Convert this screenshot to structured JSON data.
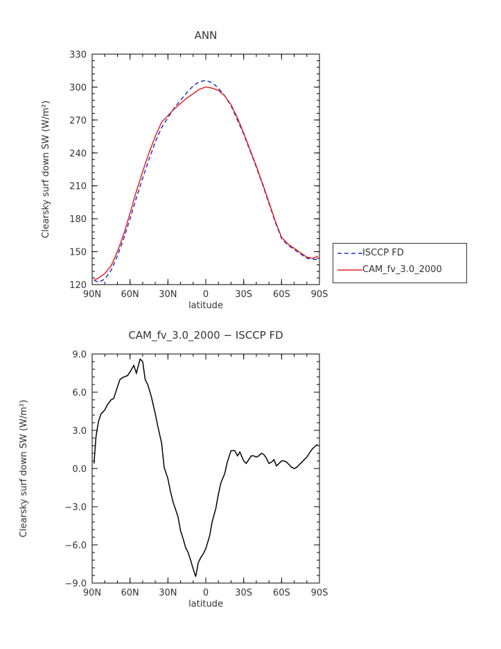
{
  "chart_data": [
    {
      "type": "line",
      "title": "ANN",
      "xlabel": "latitude",
      "ylabel": "Clearsky surf down SW (W/m²)",
      "xlim": [
        -90,
        90
      ],
      "ylim": [
        120,
        330
      ],
      "x_ticks": [
        -90,
        -60,
        -30,
        0,
        30,
        60,
        90
      ],
      "x_tick_labels": [
        "90N",
        "60N",
        "30N",
        "0",
        "30S",
        "60S",
        "90S"
      ],
      "y_ticks": [
        120,
        150,
        180,
        210,
        240,
        270,
        300,
        330
      ],
      "y_tick_labels": [
        "120",
        "150",
        "180",
        "210",
        "240",
        "270",
        "300",
        "330"
      ],
      "legend": "right",
      "series": [
        {
          "name": "ISCCP FD",
          "color": "#1f2fd8",
          "style": "dashed",
          "x": [
            -88.5,
            -85,
            -80,
            -75,
            -70,
            -65,
            -60,
            -55,
            -50,
            -45,
            -40,
            -35,
            -30,
            -25,
            -20,
            -15,
            -10,
            -5,
            0,
            5,
            10,
            15,
            20,
            25,
            30,
            35,
            40,
            45,
            50,
            55,
            60,
            65,
            70,
            75,
            80,
            85,
            89
          ],
          "values": [
            124,
            122,
            125,
            133,
            146,
            162,
            180,
            199,
            217,
            234,
            250,
            263,
            272,
            281,
            288,
            295,
            301,
            305,
            306,
            304,
            299,
            292,
            283,
            270,
            257,
            242,
            227,
            211,
            194,
            177,
            162,
            156,
            152,
            148,
            144,
            143,
            143
          ]
        },
        {
          "name": "CAM_fv_3.0_2000",
          "color": "#e32020",
          "style": "solid",
          "x": [
            -88.5,
            -85,
            -80,
            -75,
            -70,
            -65,
            -60,
            -55,
            -50,
            -45,
            -40,
            -35,
            -30,
            -25,
            -20,
            -15,
            -10,
            -5,
            0,
            5,
            10,
            15,
            20,
            25,
            30,
            35,
            40,
            45,
            50,
            55,
            60,
            65,
            70,
            75,
            80,
            85,
            89
          ],
          "values": [
            124,
            126,
            130,
            137,
            150,
            166,
            185,
            205,
            223,
            240,
            255,
            268,
            274,
            280,
            285,
            290,
            294,
            298,
            300,
            299,
            297,
            292,
            284,
            272,
            258,
            243,
            228,
            212,
            195,
            178,
            163,
            157,
            153,
            149,
            145,
            144,
            146
          ]
        }
      ]
    },
    {
      "type": "line",
      "title": "CAM_fv_3.0_2000 − ISCCP FD",
      "xlabel": "latitude",
      "ylabel": "Clearsky surf down SW (W/m²)",
      "xlim": [
        -90,
        90
      ],
      "ylim": [
        -9,
        9
      ],
      "x_ticks": [
        -90,
        -60,
        -30,
        0,
        30,
        60,
        90
      ],
      "x_tick_labels": [
        "90N",
        "60N",
        "30N",
        "0",
        "30S",
        "60S",
        "90S"
      ],
      "y_ticks": [
        -9,
        -6,
        -3,
        0,
        3,
        6,
        9
      ],
      "y_tick_labels": [
        "−9.0",
        "−6.0",
        "−3.0",
        "0.0",
        "3.0",
        "6.0",
        "9.0"
      ],
      "series": [
        {
          "color": "#000000",
          "style": "solid",
          "x": [
            -88.5,
            -87,
            -85,
            -83,
            -80,
            -78,
            -75,
            -73,
            -70,
            -68,
            -65,
            -62,
            -60,
            -57,
            -55,
            -52,
            -50,
            -48,
            -46,
            -43,
            -40,
            -38,
            -35,
            -33,
            -30,
            -28,
            -26,
            -24,
            -22,
            -20,
            -18,
            -16,
            -14,
            -12,
            -10,
            -8,
            -6,
            -4,
            -2,
            0,
            3,
            5,
            8,
            10,
            12,
            15,
            17,
            20,
            23,
            25,
            27,
            30,
            32,
            34,
            36,
            38,
            40,
            42,
            44,
            46,
            48,
            50,
            52,
            54,
            56,
            58,
            60,
            62,
            64,
            66,
            68,
            70,
            72,
            74,
            76,
            78,
            80,
            82,
            84,
            86,
            88.5
          ],
          "values": [
            0.4,
            2.5,
            3.7,
            4.3,
            4.6,
            5.0,
            5.4,
            5.5,
            6.4,
            7.0,
            7.2,
            7.3,
            7.6,
            8.1,
            7.5,
            8.6,
            8.4,
            7.0,
            6.6,
            5.6,
            4.3,
            3.3,
            2.0,
            0.1,
            -0.8,
            -1.8,
            -2.6,
            -3.2,
            -3.8,
            -4.9,
            -5.5,
            -6.2,
            -6.6,
            -7.2,
            -7.9,
            -8.5,
            -7.4,
            -7.0,
            -6.7,
            -6.3,
            -5.3,
            -4.2,
            -3.1,
            -2.0,
            -1.1,
            -0.4,
            0.5,
            1.4,
            1.4,
            1.0,
            1.3,
            0.6,
            0.4,
            0.7,
            1.0,
            1.0,
            0.9,
            1.0,
            1.2,
            1.1,
            0.8,
            0.4,
            0.5,
            0.7,
            0.2,
            0.4,
            0.6,
            0.6,
            0.5,
            0.3,
            0.1,
            0.0,
            0.1,
            0.3,
            0.5,
            0.7,
            0.9,
            1.2,
            1.5,
            1.7,
            1.9
          ]
        }
      ]
    }
  ]
}
